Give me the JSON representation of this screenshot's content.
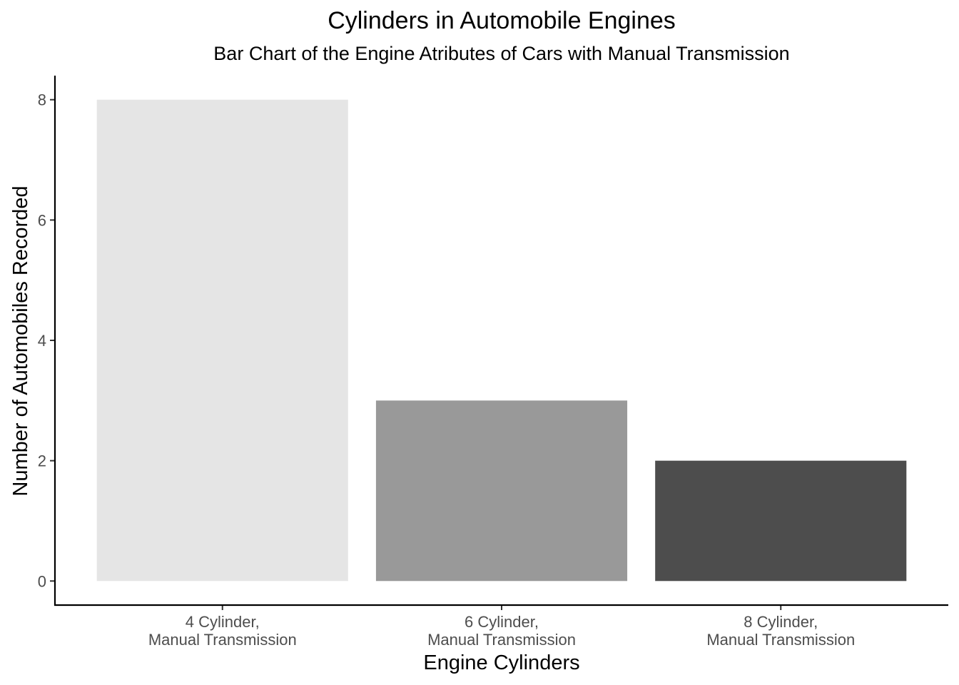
{
  "chart_data": {
    "type": "bar",
    "title": "Cylinders in Automobile Engines",
    "subtitle": "Bar Chart of the Engine Atributes of Cars with Manual Transmission",
    "xlabel": "Engine Cylinders",
    "ylabel": "Number of Automobiles Recorded",
    "categories": [
      [
        "4 Cylinder,",
        "Manual Transmission"
      ],
      [
        "6 Cylinder,",
        "Manual Transmission"
      ],
      [
        "8 Cylinder,",
        "Manual Transmission"
      ]
    ],
    "values": [
      8,
      3,
      2
    ],
    "bar_colors": [
      "#e5e5e5",
      "#999999",
      "#4d4d4d"
    ],
    "yticks": [
      0,
      2,
      4,
      6,
      8
    ],
    "ylim": [
      -0.4,
      8.4
    ],
    "grid": false,
    "legend": "none"
  }
}
